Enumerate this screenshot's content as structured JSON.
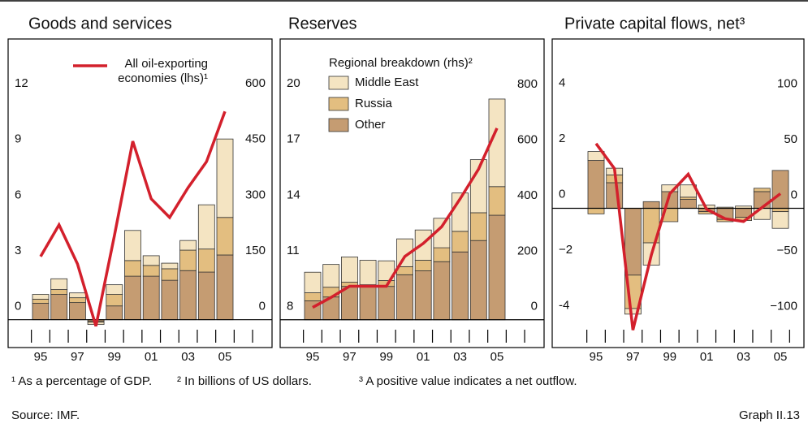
{
  "chart_data": [
    {
      "type": "stacked_bar_line",
      "title": "Goods and services",
      "categories": [
        "95",
        null,
        "97",
        null,
        "99",
        null,
        "01",
        null,
        "03",
        null,
        "05"
      ],
      "series": [
        {
          "name": "Middle East",
          "color": "#f4e4c2",
          "axis": "y2",
          "values": [
            13,
            29,
            13,
            -6,
            26,
            81,
            26,
            15,
            26,
            119,
            211
          ]
        },
        {
          "name": "Russia",
          "color": "#e3be80",
          "axis": "y2",
          "values": [
            11,
            13,
            13,
            -3,
            31,
            42,
            29,
            31,
            55,
            62,
            101
          ]
        },
        {
          "name": "Other",
          "color": "#c59c72",
          "axis": "y2",
          "values": [
            44,
            68,
            46,
            -4,
            37,
            117,
            117,
            106,
            132,
            128,
            174
          ]
        },
        {
          "name": "All oil-exporting economies (lhs)¹",
          "color": "#d3202c",
          "axis": "y",
          "values": [
            3.4,
            5.1,
            3.0,
            -0.35,
            4.5,
            9.6,
            6.5,
            5.5,
            7.1,
            8.5,
            11.2
          ]
        }
      ],
      "ylim": [
        -1.5,
        15.1
      ],
      "yticks": [
        0,
        3,
        6,
        9,
        12
      ],
      "y2lim": [
        -75,
        755
      ],
      "y2ticks": [
        0,
        150,
        300,
        450,
        600
      ]
    },
    {
      "type": "stacked_bar_line",
      "title": "Reserves",
      "legend_title": "Regional breakdown (rhs)²",
      "categories": [
        "95",
        null,
        "97",
        null,
        "99",
        null,
        "01",
        null,
        "03",
        null,
        "05"
      ],
      "series": [
        {
          "name": "Middle East",
          "color": "#f4e4c2",
          "axis": "y2",
          "values": [
            74,
            82,
            91,
            88,
            71,
            100,
            109,
            106,
            138,
            191,
            315
          ]
        },
        {
          "name": "Russia",
          "color": "#e3be80",
          "axis": "y2",
          "values": [
            29,
            35,
            15,
            6,
            21,
            29,
            38,
            50,
            74,
            100,
            103
          ]
        },
        {
          "name": "Other",
          "color": "#c59c72",
          "axis": "y2",
          "values": [
            68,
            82,
            120,
            120,
            120,
            162,
            176,
            209,
            244,
            285,
            376
          ]
        },
        {
          "name": null,
          "color": "#d3202c",
          "axis": "y",
          "values": [
            8.66,
            9.2,
            9.8,
            9.8,
            9.8,
            11.4,
            12.1,
            13.0,
            14.5,
            16.1,
            18.3
          ]
        }
      ],
      "ylim": [
        6.5,
        23.1
      ],
      "yticks": [
        8,
        11,
        14,
        17,
        20
      ],
      "y2lim": [
        -100,
        1010
      ],
      "y2ticks": [
        0,
        200,
        400,
        600,
        800
      ]
    },
    {
      "type": "stacked_bar_line",
      "title": "Private capital flows, net³",
      "categories": [
        "95",
        null,
        "97",
        null,
        "99",
        null,
        "01",
        null,
        "03",
        null,
        "05"
      ],
      "series": [
        {
          "name": "Middle East",
          "color": "#f4e4c2",
          "axis": "y2",
          "values": [
            8,
            6,
            -5,
            -20,
            6,
            11,
            3,
            1,
            2,
            -10,
            -15
          ]
        },
        {
          "name": "Russia",
          "color": "#e3be80",
          "axis": "y2",
          "values": [
            -5,
            7,
            -30,
            -31,
            -12,
            2,
            -2,
            -2,
            -3,
            3,
            -3
          ]
        },
        {
          "name": "Other",
          "color": "#c59c72",
          "axis": "y2",
          "values": [
            43,
            23,
            -60,
            6,
            15,
            8,
            -3,
            -10,
            -8,
            15,
            34
          ]
        },
        {
          "name": null,
          "color": "#d3202c",
          "axis": "y",
          "values": [
            2.3,
            1.4,
            -4.4,
            -1.7,
            0.5,
            1.2,
            -0.06,
            -0.4,
            -0.5,
            0.0,
            0.5
          ]
        }
      ],
      "ylim": [
        -5.03,
        6.06
      ],
      "yticks": [
        -4,
        {
          "value": -2,
          "label": "−2"
        },
        0,
        2,
        4
      ],
      "y2lim": [
        -125,
        152
      ],
      "y2ticks": [
        {
          "value": -100,
          "label": "−100"
        },
        {
          "value": -50,
          "label": "−50"
        },
        0,
        50,
        100
      ]
    }
  ],
  "footnotes": [
    "¹ As a percentage of GDP.",
    "² In billions of US dollars.",
    "³ A positive value indicates a net outflow."
  ],
  "source": "Source: IMF.",
  "graph_label": "Graph II.13"
}
